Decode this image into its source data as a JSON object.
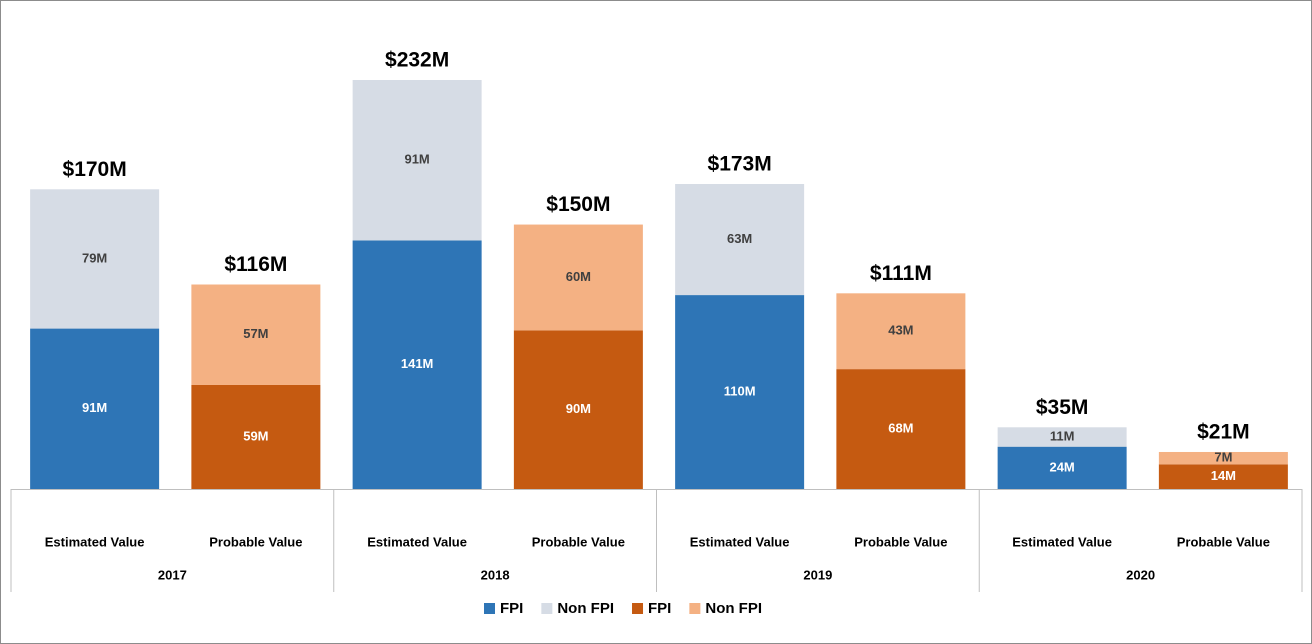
{
  "chart_data": {
    "type": "stacked_bar",
    "categories": [
      "Estimated Value",
      "Probable Value",
      "Estimated Value",
      "Probable Value",
      "Estimated Value",
      "Probable Value",
      "Estimated Value",
      "Probable Value"
    ],
    "groups": [
      "2017",
      "2018",
      "2019",
      "2020"
    ],
    "series": [
      {
        "name": "FPI",
        "color": "#2e75b6",
        "label_color": "#ffffff",
        "values": [
          91,
          null,
          141,
          null,
          110,
          null,
          24,
          null
        ],
        "value_labels": [
          "91M",
          null,
          "141M",
          null,
          "110M",
          null,
          "24M",
          null
        ]
      },
      {
        "name": "Non FPI",
        "color": "#d6dce5",
        "label_color": "#404040",
        "values": [
          79,
          null,
          91,
          null,
          63,
          null,
          11,
          null
        ],
        "value_labels": [
          "79M",
          null,
          "91M",
          null,
          "63M",
          null,
          "11M",
          null
        ]
      },
      {
        "name": "FPI",
        "color": "#c55a11",
        "label_color": "#ffffff",
        "values": [
          null,
          59,
          null,
          90,
          null,
          68,
          null,
          14
        ],
        "value_labels": [
          null,
          "59M",
          null,
          "90M",
          null,
          "68M",
          null,
          "14M"
        ]
      },
      {
        "name": "Non FPI",
        "color": "#f4b183",
        "label_color": "#404040",
        "values": [
          null,
          57,
          null,
          60,
          null,
          43,
          null,
          7
        ],
        "value_labels": [
          null,
          "57M",
          null,
          "60M",
          null,
          "43M",
          null,
          "7M"
        ]
      }
    ],
    "totals": {
      "values": [
        170,
        116,
        232,
        150,
        173,
        111,
        35,
        21
      ],
      "value_labels": [
        "$170M",
        "$116M",
        "$232M",
        "$150M",
        "$173M",
        "$111M",
        "$35M",
        "$21M"
      ]
    }
  }
}
